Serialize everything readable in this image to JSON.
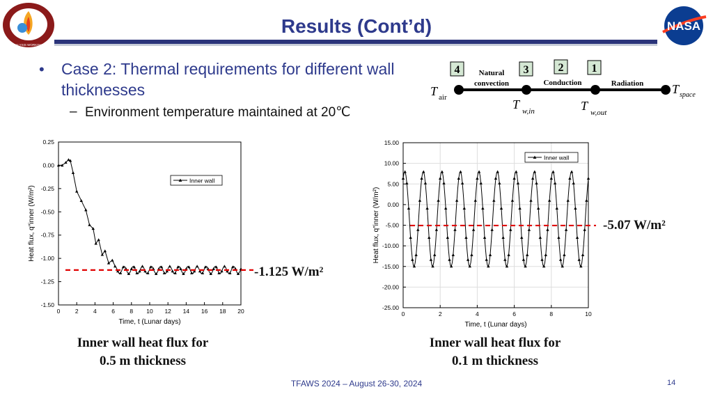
{
  "slide": {
    "title": "Results (Cont’d)",
    "bullet1": "Case 2: Thermal requirements for different wall thicknesses",
    "bullet1_line1": "Case 2: Thermal requirements for different wall",
    "bullet1_line2": "thicknesses",
    "bullet2": "Environment temperature maintained at 20℃",
    "bullet2_dash": "–",
    "footer": "TFAWS 2024 – August 26-30, 2024",
    "page_number": "14"
  },
  "logos": {
    "left": {
      "text_top": "THERMAL & FLUIDS",
      "text_bottom": "ANALYSIS WORKSHOP",
      "colors": [
        "#8b1a1a",
        "#f5a623",
        "#3a8fd9"
      ]
    },
    "right": {
      "text": "NASA",
      "colors": [
        "#0b3d91",
        "#fc3d21",
        "#ffffff"
      ]
    }
  },
  "diagram": {
    "nodes": [
      {
        "base": "T",
        "sub": "air"
      },
      {
        "base": "T",
        "sub": "w,in"
      },
      {
        "base": "T",
        "sub": "w,out"
      },
      {
        "base": "T",
        "sub": "space"
      }
    ],
    "links": [
      {
        "number": "4",
        "label1": "Natural",
        "label2": "convection"
      },
      {
        "number": "3",
        "label1": "",
        "label2": ""
      },
      {
        "number": "2",
        "label1": "Conduction",
        "label2": ""
      },
      {
        "number": "1",
        "label1": "Radiation",
        "label2": ""
      }
    ],
    "box_fill": "#d5e8d4"
  },
  "chart_data": [
    {
      "type": "line",
      "xlabel": "Time, t (Lunar days)",
      "ylabel": "Heat flux, q″inner (W/m²)",
      "xlim": [
        0,
        20
      ],
      "ylim": [
        -1.5,
        0.25
      ],
      "xticks": [
        0,
        2,
        4,
        6,
        8,
        10,
        12,
        14,
        16,
        18,
        20
      ],
      "yticks": [
        0.25,
        0.0,
        -0.25,
        -0.5,
        -0.75,
        -1.0,
        -1.25,
        -1.5
      ],
      "ytick_labels": [
        "0.25",
        "0.00",
        "-0.25",
        "-0.50",
        "-0.75",
        "-1.00",
        "-1.25",
        "-1.50"
      ],
      "legend": {
        "entry": "Inner wall",
        "placement": "right-middle"
      },
      "series": [
        {
          "name": "Inner wall",
          "color": "#000000",
          "marker": "triangle"
        }
      ],
      "reference_line": {
        "value": -1.125,
        "color": "#e00000",
        "style": "dashed",
        "label": "-1.125 W/m²"
      },
      "caption": [
        "Inner wall heat flux for",
        "0.5 m thickness"
      ],
      "grid": false
    },
    {
      "type": "line",
      "xlabel": "Time, t (Lunar days)",
      "ylabel": "Heat flux, q″inner (W/m²)",
      "xlim": [
        0,
        10
      ],
      "ylim": [
        -25,
        15
      ],
      "xticks": [
        0,
        2,
        4,
        6,
        8,
        10
      ],
      "yticks": [
        15,
        10,
        5,
        0,
        -5,
        -10,
        -15,
        -20,
        -25
      ],
      "ytick_labels": [
        "15.00",
        "10.00",
        "5.00",
        "0.00",
        "-5.00",
        "-10.00",
        "-15.00",
        "-20.00",
        "-25.00"
      ],
      "legend": {
        "entry": "Inner wall",
        "placement": "top-right"
      },
      "series": [
        {
          "name": "Inner wall",
          "color": "#000000",
          "marker": "triangle",
          "min": -15,
          "max": 8,
          "cycles": 10
        }
      ],
      "reference_line": {
        "value": -5.07,
        "color": "#e00000",
        "style": "dashed",
        "label": "-5.07 W/m²"
      },
      "caption": [
        "Inner wall heat flux for",
        "0.1 m thickness"
      ],
      "grid": true
    }
  ]
}
